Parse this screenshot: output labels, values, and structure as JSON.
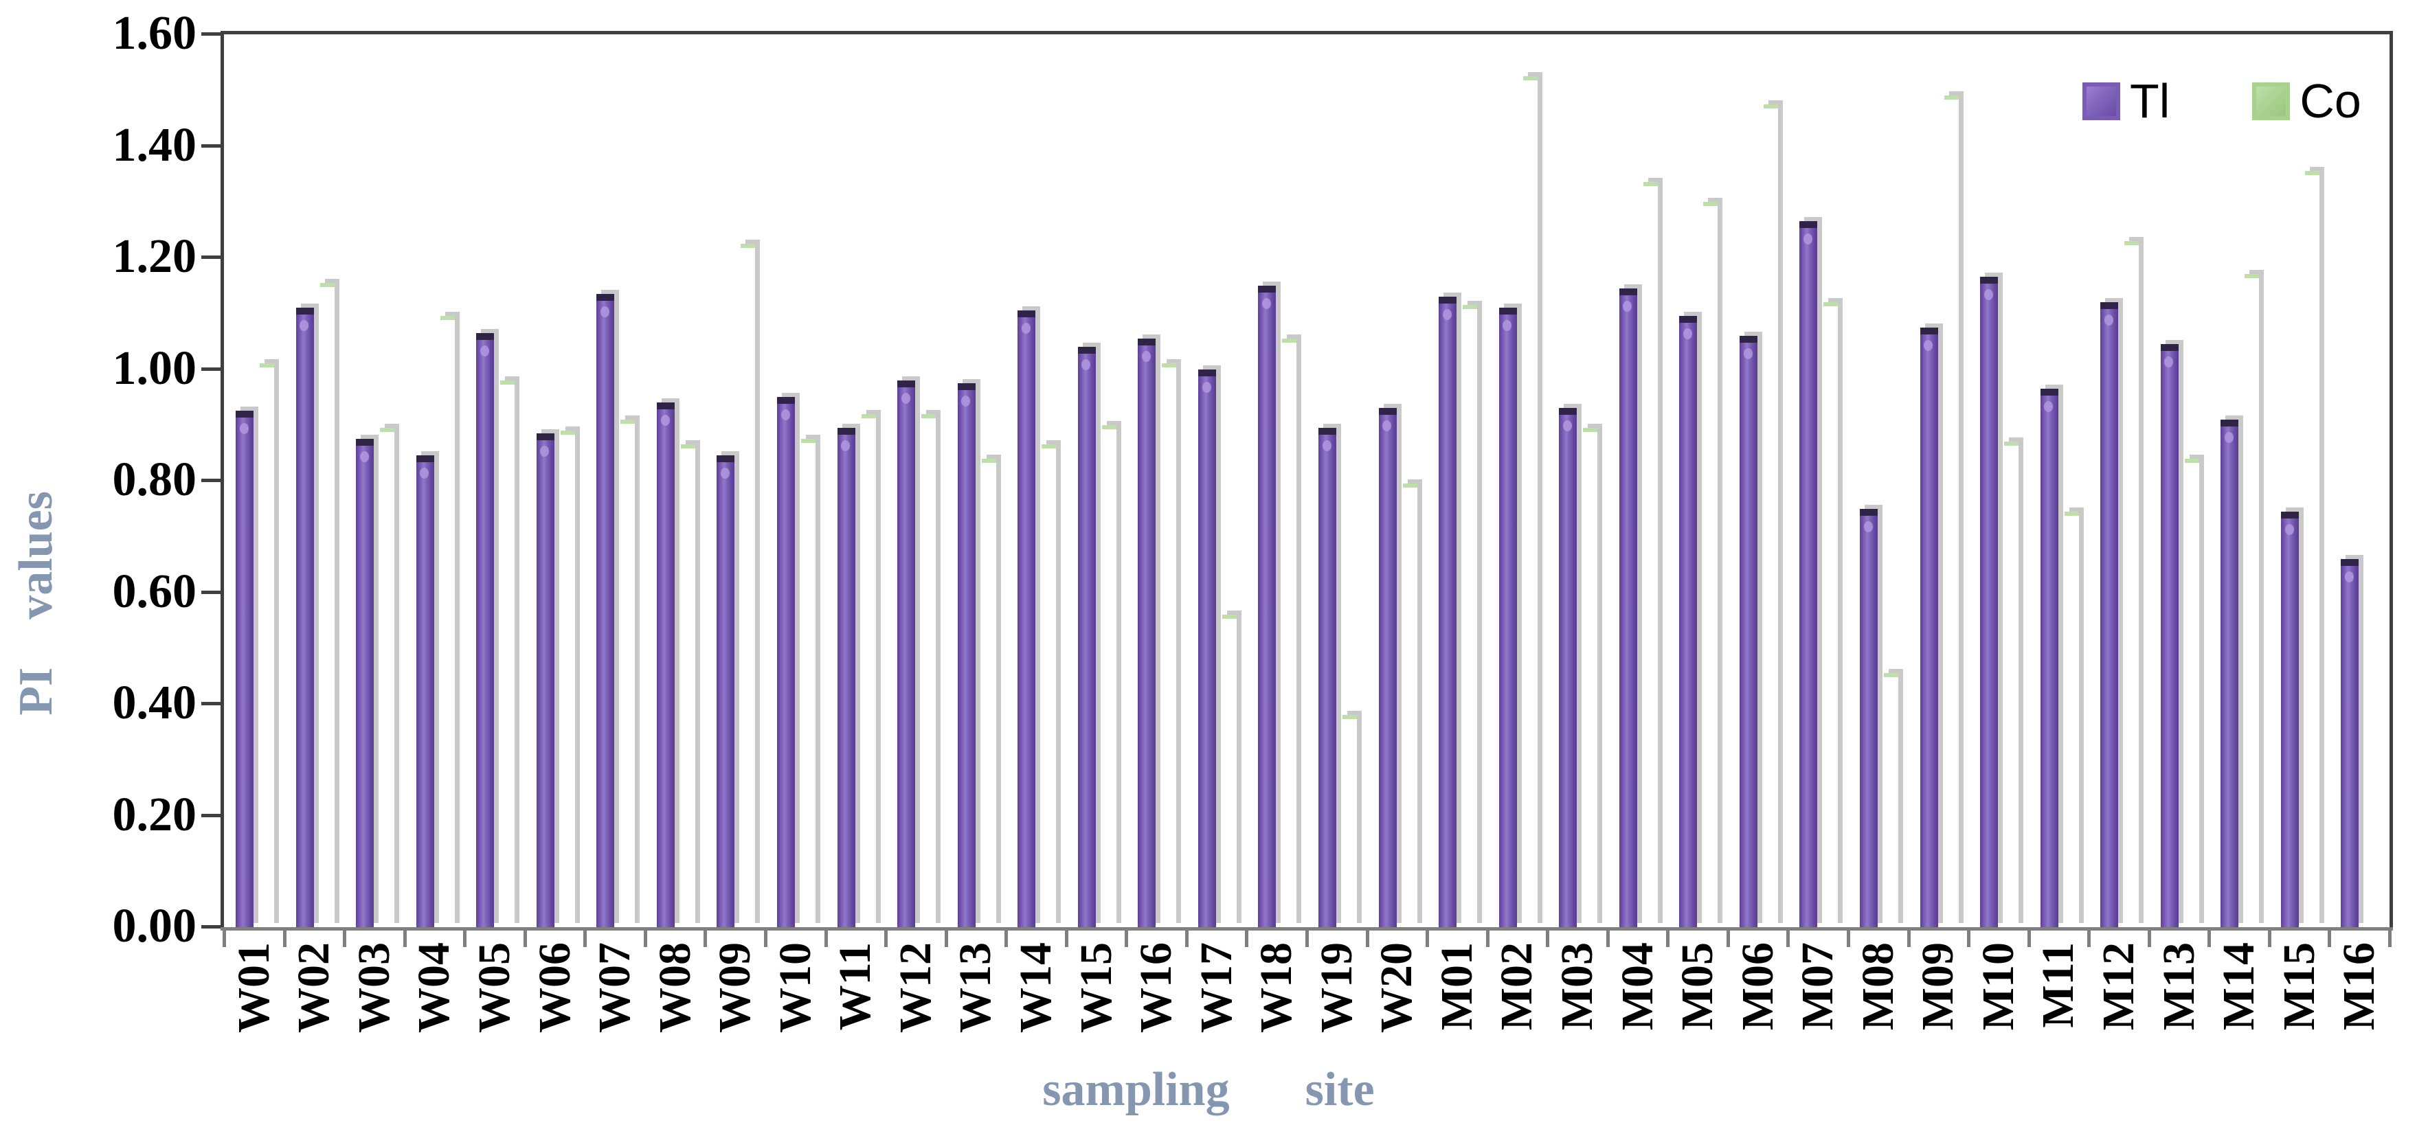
{
  "legend": {
    "tl": "Tl",
    "co": "Co"
  },
  "y_axis": {
    "title_word1": "PI",
    "title_word2": "values",
    "tick_labels": [
      "0.00",
      "0.20",
      "0.40",
      "0.60",
      "0.80",
      "1.00",
      "1.20",
      "1.40",
      "1.60"
    ],
    "min": 0.0,
    "max": 1.6,
    "step": 0.2
  },
  "x_axis": {
    "title_word1": "sampling",
    "title_word2": "site"
  },
  "colors": {
    "tl_bar": "#7a5cb8",
    "co_bar": "#a9d18e",
    "axis_dark": "#3f3f3f",
    "axis_bottom": "#7f7f7f",
    "axis_title_text": "#8496b0",
    "bar_shadow": "#c9c9c9"
  },
  "chart_data": {
    "type": "bar",
    "title": "",
    "xlabel": "sampling site",
    "ylabel": "PI values",
    "ylim": [
      0,
      1.6
    ],
    "ytick_step": 0.2,
    "grid": false,
    "legend_position": "top-right",
    "categories": [
      "W01",
      "W02",
      "W03",
      "W04",
      "W05",
      "W06",
      "W07",
      "W08",
      "W09",
      "W10",
      "W11",
      "W12",
      "W13",
      "W14",
      "W15",
      "W16",
      "W17",
      "W18",
      "W19",
      "W20",
      "M01",
      "M02",
      "M03",
      "M04",
      "M05",
      "M06",
      "M07",
      "M08",
      "M09",
      "M10",
      "M11",
      "M12",
      "M13",
      "M14",
      "M15",
      "M16"
    ],
    "series": [
      {
        "name": "Tl",
        "color": "#7a5cb8",
        "values": [
          0.925,
          1.11,
          0.875,
          0.845,
          1.065,
          0.885,
          1.135,
          0.94,
          0.845,
          0.95,
          0.895,
          0.98,
          0.975,
          1.105,
          1.04,
          1.055,
          1.0,
          1.15,
          0.895,
          0.93,
          1.13,
          1.11,
          0.93,
          1.145,
          1.095,
          1.06,
          1.265,
          0.75,
          1.075,
          1.165,
          0.965,
          1.12,
          1.045,
          0.91,
          0.745,
          0.66
        ]
      },
      {
        "name": "Co",
        "color": "#a9d18e",
        "values": [
          1.01,
          1.155,
          0.895,
          1.095,
          0.98,
          0.89,
          0.91,
          0.865,
          1.225,
          0.875,
          0.92,
          0.92,
          0.84,
          0.865,
          0.9,
          1.01,
          0.56,
          1.055,
          0.38,
          0.795,
          1.115,
          1.525,
          0.895,
          1.335,
          1.3,
          1.475,
          1.12,
          0.455,
          1.49,
          0.87,
          0.745,
          1.23,
          0.84,
          1.17,
          1.355,
          null
        ]
      }
    ]
  }
}
